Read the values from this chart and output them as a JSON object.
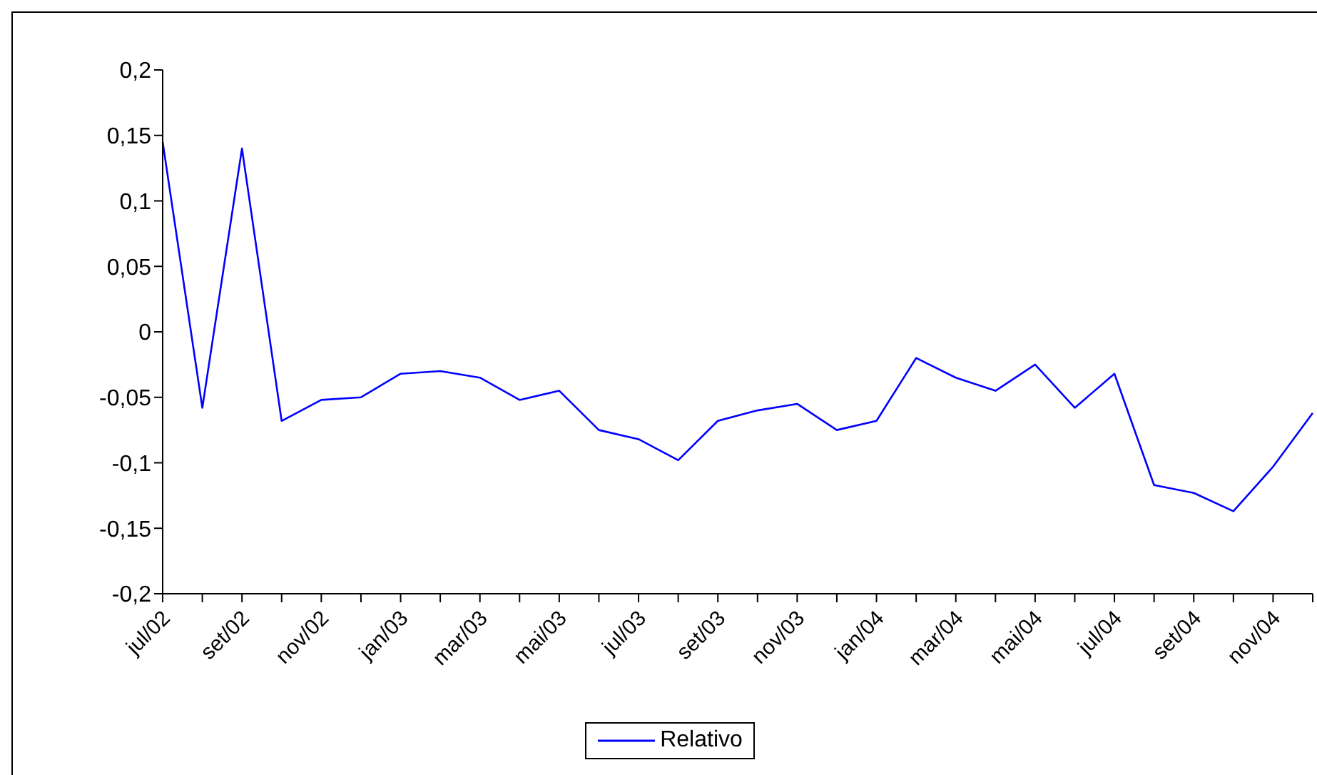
{
  "chart_data": {
    "type": "line",
    "categories": [
      "jul/02",
      null,
      "set/02",
      null,
      "nov/02",
      null,
      "jan/03",
      null,
      "mar/03",
      null,
      "mai/03",
      null,
      "jul/03",
      null,
      "set/03",
      null,
      "nov/03",
      null,
      "jan/04",
      null,
      "mar/04",
      null,
      "mai/04",
      null,
      "jul/04",
      null,
      "set/04",
      null,
      "nov/04",
      null
    ],
    "series": [
      {
        "name": "Relativo",
        "color": "#0000ff",
        "values": [
          0.145,
          -0.058,
          0.14,
          -0.068,
          -0.052,
          -0.05,
          -0.032,
          -0.03,
          -0.035,
          -0.052,
          -0.045,
          -0.075,
          -0.082,
          -0.098,
          -0.068,
          -0.06,
          -0.055,
          -0.075,
          -0.068,
          -0.02,
          -0.035,
          -0.045,
          -0.025,
          -0.058,
          -0.032,
          -0.117,
          -0.123,
          -0.137,
          -0.103,
          -0.062
        ]
      }
    ],
    "ylim": [
      -0.2,
      0.2
    ],
    "yticks": [
      {
        "value": -0.2,
        "label": "-0,2"
      },
      {
        "value": -0.15,
        "label": "-0,15"
      },
      {
        "value": -0.1,
        "label": "-0,1"
      },
      {
        "value": -0.05,
        "label": "-0,05"
      },
      0,
      {
        "value": 0.05,
        "label": "0,05"
      },
      {
        "value": 0.1,
        "label": "0,1"
      },
      {
        "value": 0.15,
        "label": "0,15"
      },
      {
        "value": 0.2,
        "label": "0,2"
      }
    ],
    "grid": false,
    "legend": "bottom",
    "marker": "none",
    "line_style": "solid"
  }
}
